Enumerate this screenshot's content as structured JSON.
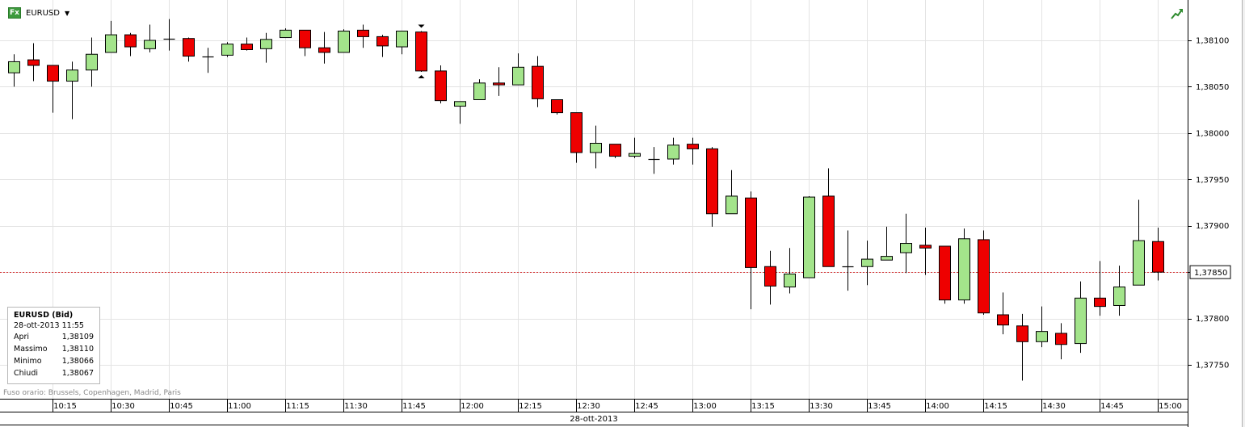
{
  "header": {
    "symbol": "EURUSD",
    "fx_badge": "Fx",
    "dropdown_icon": "caret-down-icon",
    "trend_icon": "trend-up-icon"
  },
  "info_box": {
    "title": "EURUSD (Bid)",
    "datetime": "28-ott-2013 11:55",
    "rows": [
      {
        "label": "Apri",
        "value": "1,38109"
      },
      {
        "label": "Massimo",
        "value": "1,38110"
      },
      {
        "label": "Minimo",
        "value": "1,38066"
      },
      {
        "label": "Chiudi",
        "value": "1,38067"
      }
    ]
  },
  "footer": {
    "timezone_note": "Fuso orario: Brussels, Copenhagen, Madrid, Paris",
    "date": "28-ott-2013"
  },
  "colors": {
    "up": "#a3e48b",
    "down": "#ee0000",
    "grid": "#e3e3e3",
    "current_line": "#d9383a"
  },
  "chart_data": {
    "type": "candlestick",
    "series_name": "EURUSD (Bid)",
    "interval": "5m",
    "ylim": [
      1.37705,
      1.3815
    ],
    "yticks": [
      "1,38100",
      "1,38050",
      "1,38000",
      "1,37950",
      "1,37900",
      "1,37850",
      "1,37800",
      "1,37750"
    ],
    "ytick_values": [
      1.381,
      1.3805,
      1.38,
      1.3795,
      1.379,
      1.3785,
      1.378,
      1.3775
    ],
    "xticks": [
      "10:15",
      "10:30",
      "10:45",
      "11:00",
      "11:15",
      "11:30",
      "11:45",
      "12:00",
      "12:15",
      "12:30",
      "12:45",
      "13:00",
      "13:15",
      "13:30",
      "13:45",
      "14:00",
      "14:15",
      "14:30",
      "14:45",
      "15:00"
    ],
    "current_price": 1.3785,
    "current_price_label": "1,37850",
    "grid": true,
    "candles": [
      {
        "t": "10:05",
        "o": 1.38065,
        "h": 1.38085,
        "l": 1.3805,
        "c": 1.38077
      },
      {
        "t": "10:10",
        "o": 1.38079,
        "h": 1.38097,
        "l": 1.38056,
        "c": 1.38073
      },
      {
        "t": "10:15",
        "o": 1.38073,
        "h": 1.38073,
        "l": 1.38022,
        "c": 1.38056
      },
      {
        "t": "10:20",
        "o": 1.38056,
        "h": 1.38077,
        "l": 1.38015,
        "c": 1.38068
      },
      {
        "t": "10:25",
        "o": 1.38068,
        "h": 1.38103,
        "l": 1.3805,
        "c": 1.38085
      },
      {
        "t": "10:30",
        "o": 1.38087,
        "h": 1.38121,
        "l": 1.38087,
        "c": 1.38106
      },
      {
        "t": "10:35",
        "o": 1.38106,
        "h": 1.38108,
        "l": 1.38083,
        "c": 1.38093
      },
      {
        "t": "10:40",
        "o": 1.38091,
        "h": 1.38117,
        "l": 1.38087,
        "c": 1.381
      },
      {
        "t": "10:45",
        "o": 1.38102,
        "h": 1.38123,
        "l": 1.38089,
        "c": 1.38103
      },
      {
        "t": "10:50",
        "o": 1.38102,
        "h": 1.38103,
        "l": 1.38077,
        "c": 1.38083
      },
      {
        "t": "10:55",
        "o": 1.38083,
        "h": 1.38092,
        "l": 1.38065,
        "c": 1.38084
      },
      {
        "t": "11:00",
        "o": 1.38084,
        "h": 1.38098,
        "l": 1.38082,
        "c": 1.38096
      },
      {
        "t": "11:05",
        "o": 1.38096,
        "h": 1.38103,
        "l": 1.38089,
        "c": 1.3809
      },
      {
        "t": "11:10",
        "o": 1.38091,
        "h": 1.38108,
        "l": 1.38076,
        "c": 1.38101
      },
      {
        "t": "11:15",
        "o": 1.38103,
        "h": 1.38113,
        "l": 1.38103,
        "c": 1.38111
      },
      {
        "t": "11:20",
        "o": 1.38111,
        "h": 1.38111,
        "l": 1.38083,
        "c": 1.38092
      },
      {
        "t": "11:25",
        "o": 1.38092,
        "h": 1.38109,
        "l": 1.38075,
        "c": 1.38087
      },
      {
        "t": "11:30",
        "o": 1.38087,
        "h": 1.38112,
        "l": 1.38087,
        "c": 1.3811
      },
      {
        "t": "11:35",
        "o": 1.38111,
        "h": 1.38117,
        "l": 1.38092,
        "c": 1.38104
      },
      {
        "t": "11:40",
        "o": 1.38104,
        "h": 1.38106,
        "l": 1.38082,
        "c": 1.38094
      },
      {
        "t": "11:45",
        "o": 1.38093,
        "h": 1.3811,
        "l": 1.38085,
        "c": 1.3811
      },
      {
        "t": "11:50",
        "o": 1.38109,
        "h": 1.3811,
        "l": 1.38066,
        "c": 1.38067
      },
      {
        "t": "11:55",
        "o": 1.38067,
        "h": 1.38073,
        "l": 1.38032,
        "c": 1.38035
      },
      {
        "t": "12:00",
        "o": 1.38029,
        "h": 1.38034,
        "l": 1.3801,
        "c": 1.38034
      },
      {
        "t": "12:05",
        "o": 1.38036,
        "h": 1.38058,
        "l": 1.38036,
        "c": 1.38054
      },
      {
        "t": "12:10",
        "o": 1.38054,
        "h": 1.38071,
        "l": 1.3804,
        "c": 1.38052
      },
      {
        "t": "12:15",
        "o": 1.38052,
        "h": 1.38086,
        "l": 1.38052,
        "c": 1.38071
      },
      {
        "t": "12:20",
        "o": 1.38072,
        "h": 1.38083,
        "l": 1.38028,
        "c": 1.38037
      },
      {
        "t": "12:25",
        "o": 1.38036,
        "h": 1.38036,
        "l": 1.3802,
        "c": 1.38022
      },
      {
        "t": "12:30",
        "o": 1.38022,
        "h": 1.38022,
        "l": 1.37968,
        "c": 1.37979
      },
      {
        "t": "12:35",
        "o": 1.37979,
        "h": 1.38008,
        "l": 1.37962,
        "c": 1.37989
      },
      {
        "t": "12:40",
        "o": 1.37988,
        "h": 1.37988,
        "l": 1.37973,
        "c": 1.37975
      },
      {
        "t": "12:45",
        "o": 1.37975,
        "h": 1.37995,
        "l": 1.37973,
        "c": 1.37978
      },
      {
        "t": "12:50",
        "o": 1.37972,
        "h": 1.37985,
        "l": 1.37956,
        "c": 1.37972
      },
      {
        "t": "12:55",
        "o": 1.37972,
        "h": 1.37995,
        "l": 1.37966,
        "c": 1.37987
      },
      {
        "t": "13:00",
        "o": 1.37988,
        "h": 1.37995,
        "l": 1.37966,
        "c": 1.37983
      },
      {
        "t": "13:05",
        "o": 1.37983,
        "h": 1.37985,
        "l": 1.37899,
        "c": 1.37913
      },
      {
        "t": "13:10",
        "o": 1.37913,
        "h": 1.3796,
        "l": 1.37913,
        "c": 1.37932
      },
      {
        "t": "13:15",
        "o": 1.3793,
        "h": 1.37937,
        "l": 1.3781,
        "c": 1.37855
      },
      {
        "t": "13:20",
        "o": 1.37856,
        "h": 1.37873,
        "l": 1.37815,
        "c": 1.37835
      },
      {
        "t": "13:25",
        "o": 1.37834,
        "h": 1.37876,
        "l": 1.37827,
        "c": 1.37848
      },
      {
        "t": "13:30",
        "o": 1.37844,
        "h": 1.37932,
        "l": 1.37844,
        "c": 1.37931
      },
      {
        "t": "13:35",
        "o": 1.37932,
        "h": 1.37962,
        "l": 1.37856,
        "c": 1.37856
      },
      {
        "t": "13:40",
        "o": 1.37856,
        "h": 1.37895,
        "l": 1.3783,
        "c": 1.37856
      },
      {
        "t": "13:45",
        "o": 1.37856,
        "h": 1.37884,
        "l": 1.37836,
        "c": 1.37864
      },
      {
        "t": "13:50",
        "o": 1.37863,
        "h": 1.37899,
        "l": 1.37863,
        "c": 1.37867
      },
      {
        "t": "13:55",
        "o": 1.37871,
        "h": 1.37913,
        "l": 1.37849,
        "c": 1.37881
      },
      {
        "t": "14:00",
        "o": 1.37879,
        "h": 1.37898,
        "l": 1.37847,
        "c": 1.37876
      },
      {
        "t": "14:05",
        "o": 1.37878,
        "h": 1.37878,
        "l": 1.37816,
        "c": 1.3782
      },
      {
        "t": "14:10",
        "o": 1.3782,
        "h": 1.37897,
        "l": 1.37816,
        "c": 1.37886
      },
      {
        "t": "14:15",
        "o": 1.37885,
        "h": 1.37895,
        "l": 1.37804,
        "c": 1.37806
      },
      {
        "t": "14:20",
        "o": 1.37804,
        "h": 1.37828,
        "l": 1.37783,
        "c": 1.37793
      },
      {
        "t": "14:25",
        "o": 1.37792,
        "h": 1.37805,
        "l": 1.37733,
        "c": 1.37775
      },
      {
        "t": "14:30",
        "o": 1.37775,
        "h": 1.37813,
        "l": 1.37769,
        "c": 1.37786
      },
      {
        "t": "14:35",
        "o": 1.37784,
        "h": 1.37795,
        "l": 1.37756,
        "c": 1.37772
      },
      {
        "t": "14:40",
        "o": 1.37773,
        "h": 1.3784,
        "l": 1.37763,
        "c": 1.37822
      },
      {
        "t": "14:45",
        "o": 1.37822,
        "h": 1.37862,
        "l": 1.37803,
        "c": 1.37813
      },
      {
        "t": "14:50",
        "o": 1.37814,
        "h": 1.37857,
        "l": 1.37803,
        "c": 1.37834
      },
      {
        "t": "14:55",
        "o": 1.37836,
        "h": 1.37928,
        "l": 1.37836,
        "c": 1.37884
      },
      {
        "t": "15:00",
        "o": 1.37883,
        "h": 1.37898,
        "l": 1.37841,
        "c": 1.3785
      }
    ]
  }
}
